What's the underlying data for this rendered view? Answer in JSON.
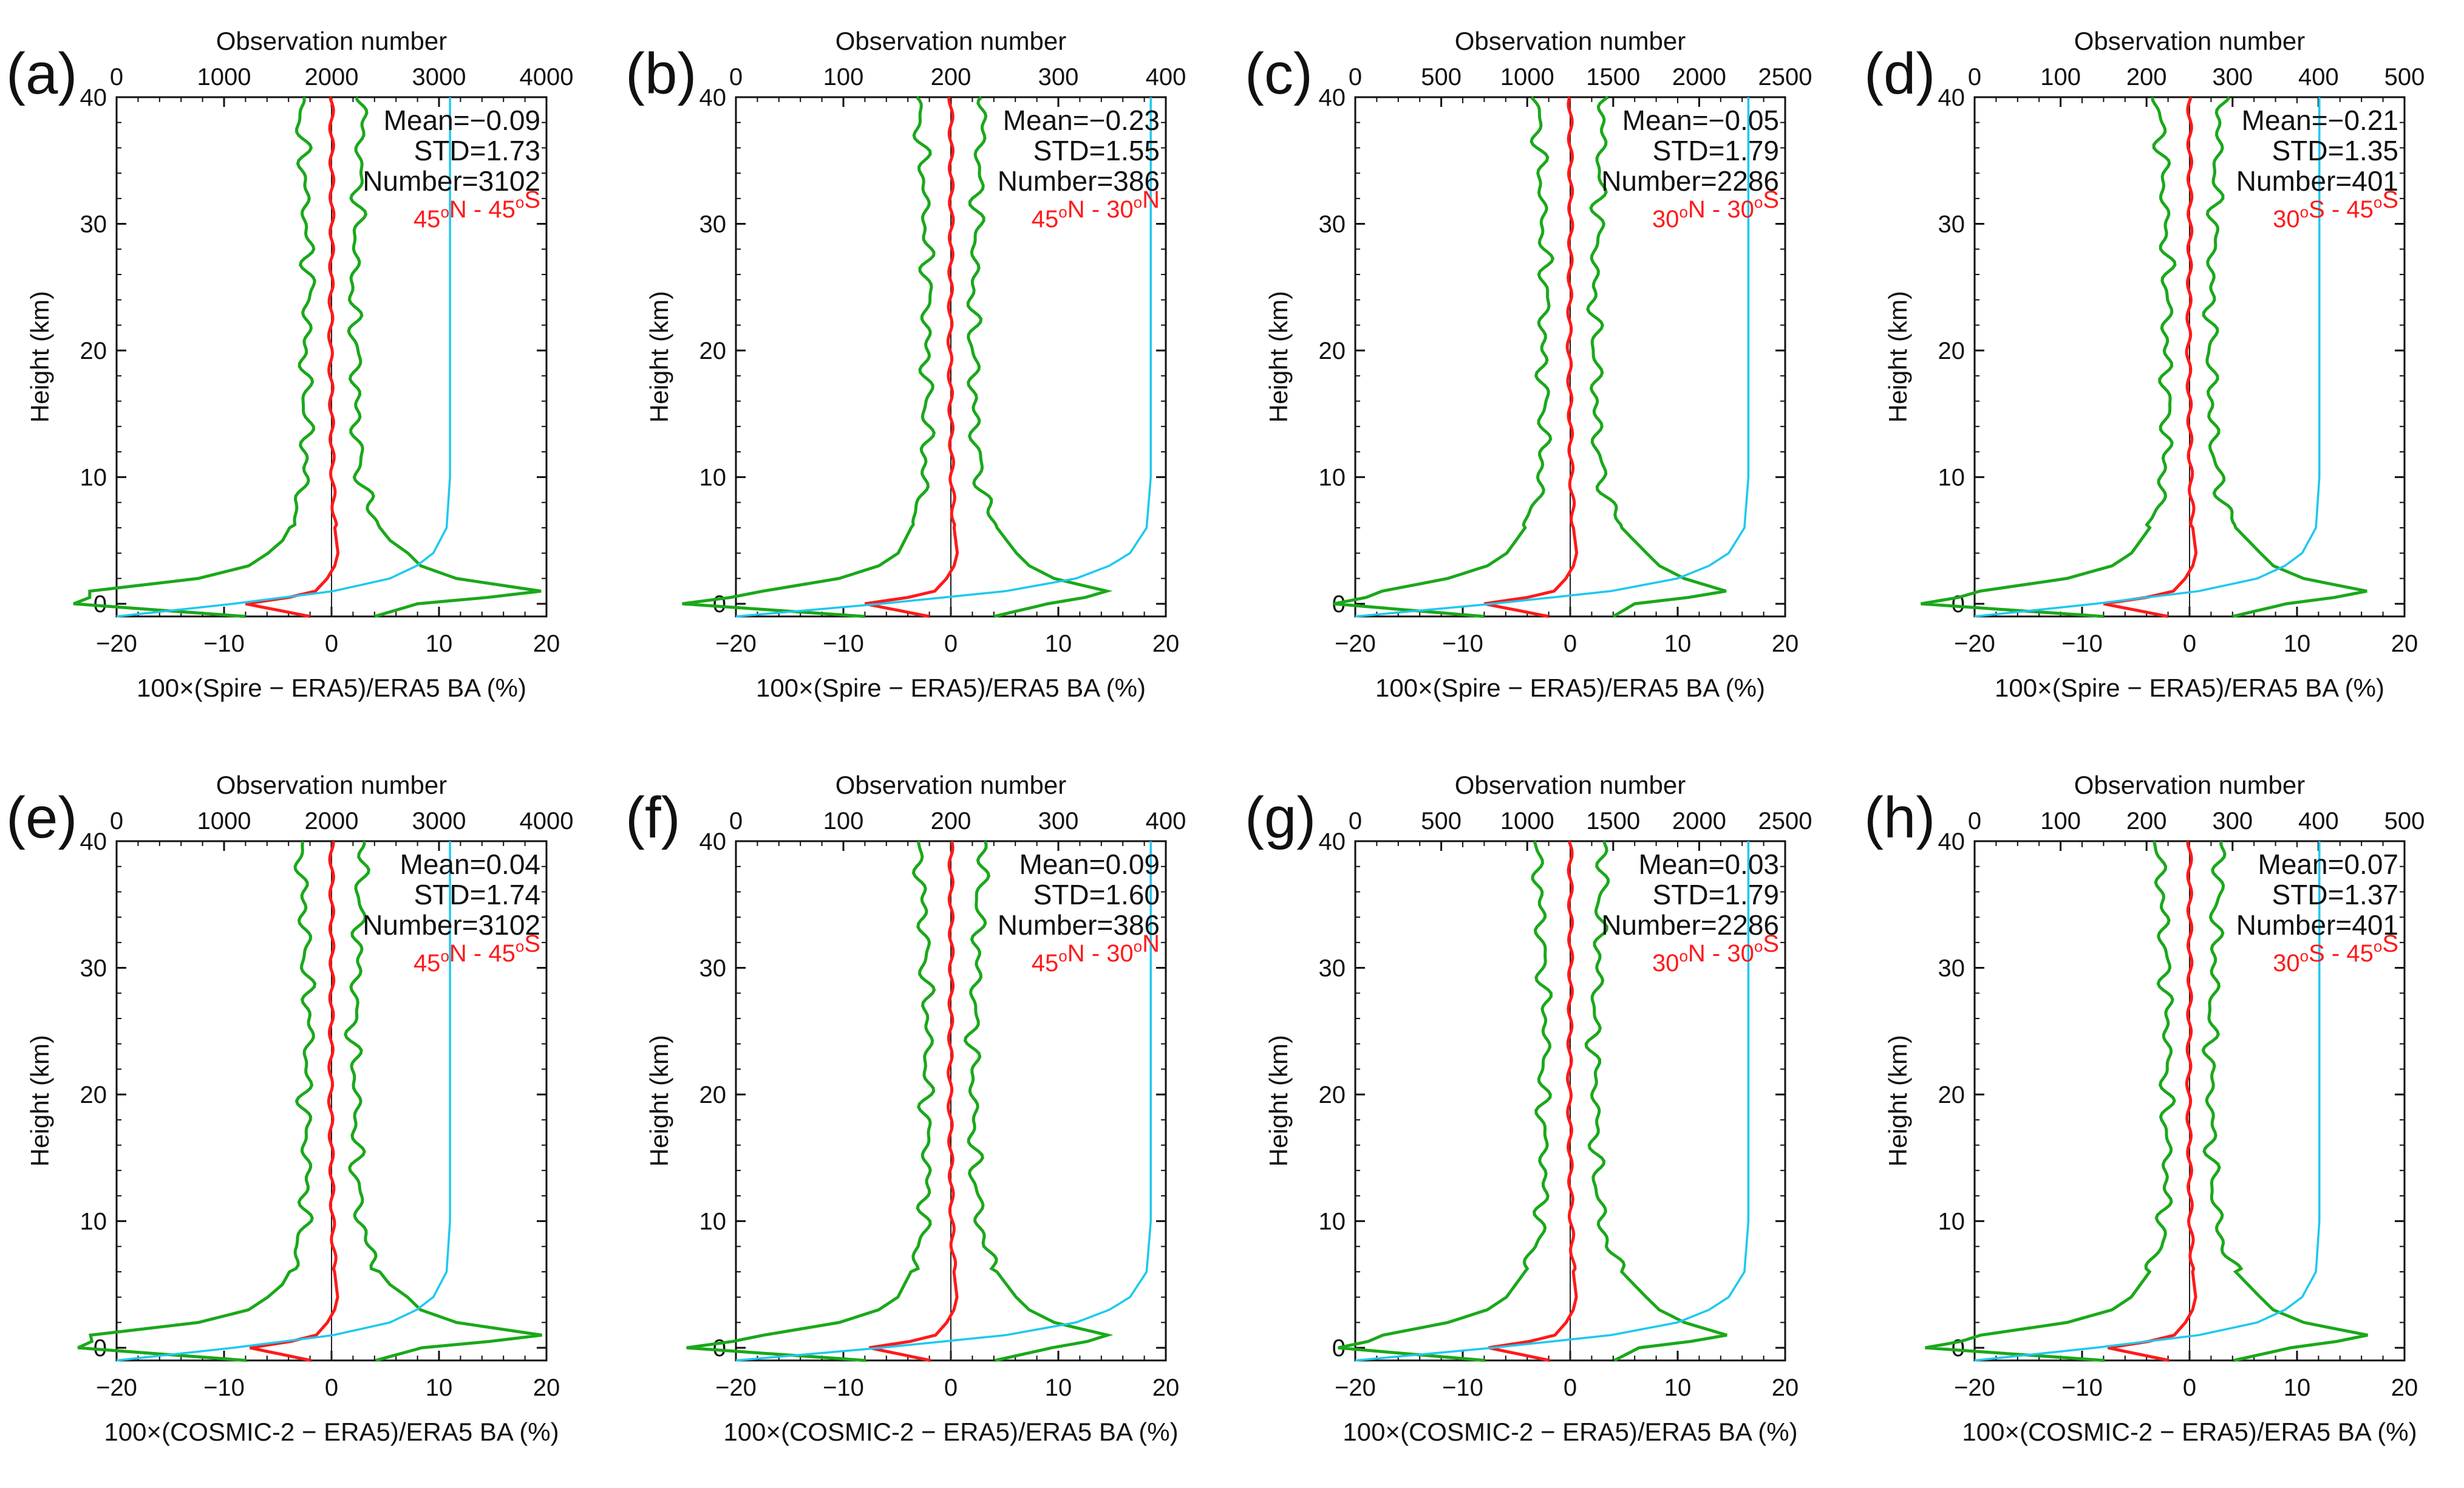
{
  "colors": {
    "std": "#1aa81a",
    "mean": "#ff1a1a",
    "count": "#1ec8f0",
    "zero": "#222222"
  },
  "chart_data": [
    {
      "type": "line",
      "panel": "(a)",
      "top_xlabel": "Observation number",
      "xlabel": "100×(Spire − ERA5)/ERA5 BA (%)",
      "ylabel": "Height (km)",
      "xlim": [
        -20,
        20
      ],
      "ylim": [
        -1,
        40
      ],
      "xticks": [
        -20,
        -10,
        0,
        10,
        20
      ],
      "yticks": [
        0,
        10,
        20,
        30,
        40
      ],
      "top_xlim": [
        0,
        4000
      ],
      "top_xticks": [
        0,
        1000,
        2000,
        3000,
        4000
      ],
      "stats": {
        "mean": "Mean=−0.09",
        "std": "STD=1.73",
        "number": "Number=3102"
      },
      "region": {
        "lat1": "45",
        "hem1": "N",
        "lat2": "45",
        "hem2": "S"
      },
      "max_obs": 3102
    },
    {
      "type": "line",
      "panel": "(b)",
      "top_xlabel": "Observation number",
      "xlabel": "100×(Spire − ERA5)/ERA5 BA (%)",
      "ylabel": "Height (km)",
      "xlim": [
        -20,
        20
      ],
      "ylim": [
        -1,
        40
      ],
      "xticks": [
        -20,
        -10,
        0,
        10,
        20
      ],
      "yticks": [
        0,
        10,
        20,
        30,
        40
      ],
      "top_xlim": [
        0,
        400
      ],
      "top_xticks": [
        0,
        100,
        200,
        300,
        400
      ],
      "stats": {
        "mean": "Mean=−0.23",
        "std": "STD=1.55",
        "number": "Number=386"
      },
      "region": {
        "lat1": "45",
        "hem1": "N",
        "lat2": "30",
        "hem2": "N"
      },
      "max_obs": 386
    },
    {
      "type": "line",
      "panel": "(c)",
      "top_xlabel": "Observation number",
      "xlabel": "100×(Spire − ERA5)/ERA5 BA (%)",
      "ylabel": "Height (km)",
      "xlim": [
        -20,
        20
      ],
      "ylim": [
        -1,
        40
      ],
      "xticks": [
        -20,
        -10,
        0,
        10,
        20
      ],
      "yticks": [
        0,
        10,
        20,
        30,
        40
      ],
      "top_xlim": [
        0,
        2500
      ],
      "top_xticks": [
        0,
        500,
        1000,
        1500,
        2000,
        2500
      ],
      "stats": {
        "mean": "Mean=−0.05",
        "std": "STD=1.79",
        "number": "Number=2286"
      },
      "region": {
        "lat1": "30",
        "hem1": "N",
        "lat2": "30",
        "hem2": "S"
      },
      "max_obs": 2286
    },
    {
      "type": "line",
      "panel": "(d)",
      "top_xlabel": "Observation number",
      "xlabel": "100×(Spire − ERA5)/ERA5 BA (%)",
      "ylabel": "Height (km)",
      "xlim": [
        -20,
        20
      ],
      "ylim": [
        -1,
        40
      ],
      "xticks": [
        -20,
        -10,
        0,
        10,
        20
      ],
      "yticks": [
        0,
        10,
        20,
        30,
        40
      ],
      "top_xlim": [
        0,
        500
      ],
      "top_xticks": [
        0,
        100,
        200,
        300,
        400,
        500
      ],
      "stats": {
        "mean": "Mean=−0.21",
        "std": "STD=1.35",
        "number": "Number=401"
      },
      "region": {
        "lat1": "30",
        "hem1": "S",
        "lat2": "45",
        "hem2": "S"
      },
      "max_obs": 401
    },
    {
      "type": "line",
      "panel": "(e)",
      "top_xlabel": "Observation number",
      "xlabel": "100×(COSMIC-2 − ERA5)/ERA5 BA (%)",
      "ylabel": "Height (km)",
      "xlim": [
        -20,
        20
      ],
      "ylim": [
        -1,
        40
      ],
      "xticks": [
        -20,
        -10,
        0,
        10,
        20
      ],
      "yticks": [
        0,
        10,
        20,
        30,
        40
      ],
      "top_xlim": [
        0,
        4000
      ],
      "top_xticks": [
        0,
        1000,
        2000,
        3000,
        4000
      ],
      "stats": {
        "mean": "Mean=0.04",
        "std": "STD=1.74",
        "number": "Number=3102"
      },
      "region": {
        "lat1": "45",
        "hem1": "N",
        "lat2": "45",
        "hem2": "S"
      },
      "max_obs": 3102
    },
    {
      "type": "line",
      "panel": "(f)",
      "top_xlabel": "Observation number",
      "xlabel": "100×(COSMIC-2 − ERA5)/ERA5 BA (%)",
      "ylabel": "Height (km)",
      "xlim": [
        -20,
        20
      ],
      "ylim": [
        -1,
        40
      ],
      "xticks": [
        -20,
        -10,
        0,
        10,
        20
      ],
      "yticks": [
        0,
        10,
        20,
        30,
        40
      ],
      "top_xlim": [
        0,
        400
      ],
      "top_xticks": [
        0,
        100,
        200,
        300,
        400
      ],
      "stats": {
        "mean": "Mean=0.09",
        "std": "STD=1.60",
        "number": "Number=386"
      },
      "region": {
        "lat1": "45",
        "hem1": "N",
        "lat2": "30",
        "hem2": "N"
      },
      "max_obs": 386
    },
    {
      "type": "line",
      "panel": "(g)",
      "top_xlabel": "Observation number",
      "xlabel": "100×(COSMIC-2 − ERA5)/ERA5 BA (%)",
      "ylabel": "Height (km)",
      "xlim": [
        -20,
        20
      ],
      "ylim": [
        -1,
        40
      ],
      "xticks": [
        -20,
        -10,
        0,
        10,
        20
      ],
      "yticks": [
        0,
        10,
        20,
        30,
        40
      ],
      "top_xlim": [
        0,
        2500
      ],
      "top_xticks": [
        0,
        500,
        1000,
        1500,
        2000,
        2500
      ],
      "stats": {
        "mean": "Mean=0.03",
        "std": "STD=1.79",
        "number": "Number=2286"
      },
      "region": {
        "lat1": "30",
        "hem1": "N",
        "lat2": "30",
        "hem2": "S"
      },
      "max_obs": 2286
    },
    {
      "type": "line",
      "panel": "(h)",
      "top_xlabel": "Observation number",
      "xlabel": "100×(COSMIC-2 − ERA5)/ERA5 BA (%)",
      "ylabel": "Height (km)",
      "xlim": [
        -20,
        20
      ],
      "ylim": [
        -1,
        40
      ],
      "xticks": [
        -20,
        -10,
        0,
        10,
        20
      ],
      "yticks": [
        0,
        10,
        20,
        30,
        40
      ],
      "top_xlim": [
        0,
        500
      ],
      "top_xticks": [
        0,
        100,
        200,
        300,
        400,
        500
      ],
      "stats": {
        "mean": "Mean=0.07",
        "std": "STD=1.37",
        "number": "Number=401"
      },
      "region": {
        "lat1": "30",
        "hem1": "S",
        "lat2": "45",
        "hem2": "S"
      },
      "max_obs": 401
    }
  ]
}
